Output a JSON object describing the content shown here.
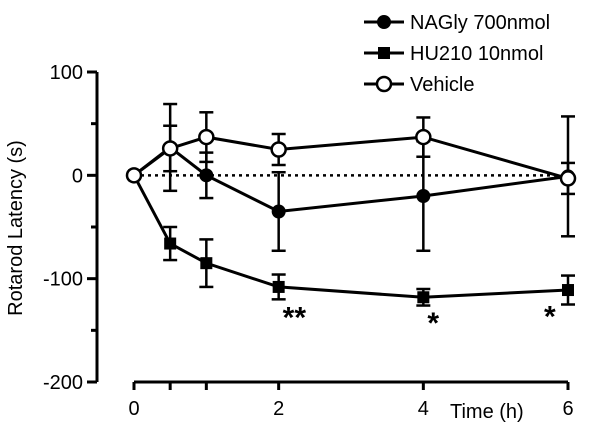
{
  "chart_data": {
    "type": "line",
    "xlabel": "Time (h)",
    "ylabel": "Rotarod Latency (s)",
    "xlim": [
      0,
      6
    ],
    "ylim": [
      -200,
      100
    ],
    "x_ticks": [
      0,
      2,
      4,
      6
    ],
    "x_minor_ticks": [
      0.5,
      1,
      2,
      4,
      6
    ],
    "y_ticks": [
      100,
      0,
      -100,
      -200
    ],
    "y_minor_ticks": [
      50,
      -50,
      -150
    ],
    "grid": false,
    "reference_line": {
      "y": 0,
      "style": "dotted"
    },
    "legend": {
      "placement": "top-right"
    },
    "series": [
      {
        "name": "NAGly 700nmol",
        "marker": "filled-circle",
        "x": [
          0,
          0.5,
          1,
          2,
          4,
          6
        ],
        "y": [
          0,
          27,
          0,
          -35,
          -20,
          -1
        ],
        "err": [
          0,
          42,
          22,
          38,
          53,
          58
        ]
      },
      {
        "name": "HU210 10nmol",
        "marker": "filled-square",
        "x": [
          0,
          0.5,
          1,
          2,
          4,
          6
        ],
        "y": [
          0,
          -66,
          -85,
          -108,
          -118,
          -111
        ],
        "err": [
          0,
          16,
          23,
          12,
          8,
          14
        ]
      },
      {
        "name": "Vehicle",
        "marker": "open-circle",
        "x": [
          0,
          0.5,
          1,
          2,
          4,
          6
        ],
        "y": [
          0,
          26,
          37,
          25,
          37,
          -3
        ],
        "err": [
          0,
          22,
          24,
          15,
          19,
          15
        ]
      }
    ],
    "annotations": [
      {
        "x": 2,
        "y": -130,
        "text": "**"
      },
      {
        "x": 4,
        "y": -135,
        "text": "*"
      },
      {
        "x": 6,
        "y": -129,
        "text": "*"
      }
    ]
  }
}
